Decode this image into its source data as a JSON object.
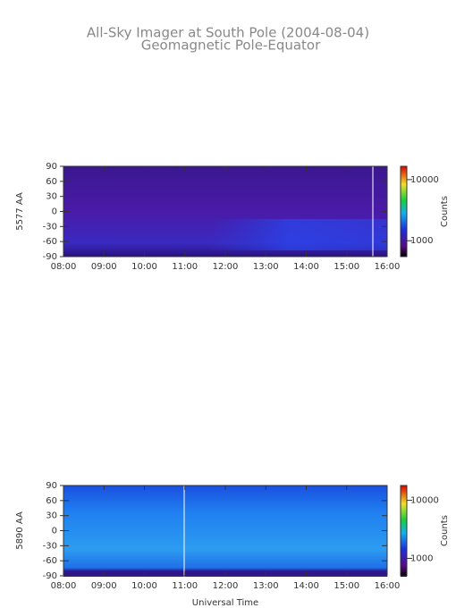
{
  "header": {
    "title": "All-Sky Imager at South Pole (2004-08-04)",
    "subtitle": "Geomagnetic Pole-Equator"
  },
  "chart_data": [
    {
      "type": "heatmap",
      "ylabel": "5577 AA",
      "xlim": [
        8,
        16
      ],
      "xticks": [
        {
          "value": 8,
          "label": "08:00"
        },
        {
          "value": 9,
          "label": "09:00"
        },
        {
          "value": 10,
          "label": "10:00"
        },
        {
          "value": 11,
          "label": "11:00"
        },
        {
          "value": 12,
          "label": "12:00"
        },
        {
          "value": 13,
          "label": "13:00"
        },
        {
          "value": 14,
          "label": "14:00"
        },
        {
          "value": 15,
          "label": "15:00"
        },
        {
          "value": 16,
          "label": "16:00"
        }
      ],
      "ylim": [
        -90,
        90
      ],
      "yticks": [
        90,
        60,
        30,
        0,
        -30,
        -60,
        -90
      ],
      "colorbar": {
        "label": "Counts",
        "scale": "log",
        "lim": [
          550,
          16500
        ],
        "ticks": [
          10000,
          1000
        ]
      }
    },
    {
      "type": "heatmap",
      "ylabel": "5890 AA",
      "xlabel": "Universal Time",
      "xlim": [
        8,
        16
      ],
      "xticks": [
        {
          "value": 8,
          "label": "08:00"
        },
        {
          "value": 9,
          "label": "09:00"
        },
        {
          "value": 10,
          "label": "10:00"
        },
        {
          "value": 11,
          "label": "11:00"
        },
        {
          "value": 12,
          "label": "12:00"
        },
        {
          "value": 13,
          "label": "13:00"
        },
        {
          "value": 14,
          "label": "14:00"
        },
        {
          "value": 15,
          "label": "15:00"
        },
        {
          "value": 16,
          "label": "16:00"
        }
      ],
      "ylim": [
        -90,
        90
      ],
      "yticks": [
        90,
        60,
        30,
        0,
        -30,
        -60,
        -90
      ],
      "colorbar": {
        "label": "Counts",
        "scale": "log",
        "lim": [
          500,
          18000
        ],
        "ticks": [
          10000,
          1000
        ]
      }
    }
  ]
}
